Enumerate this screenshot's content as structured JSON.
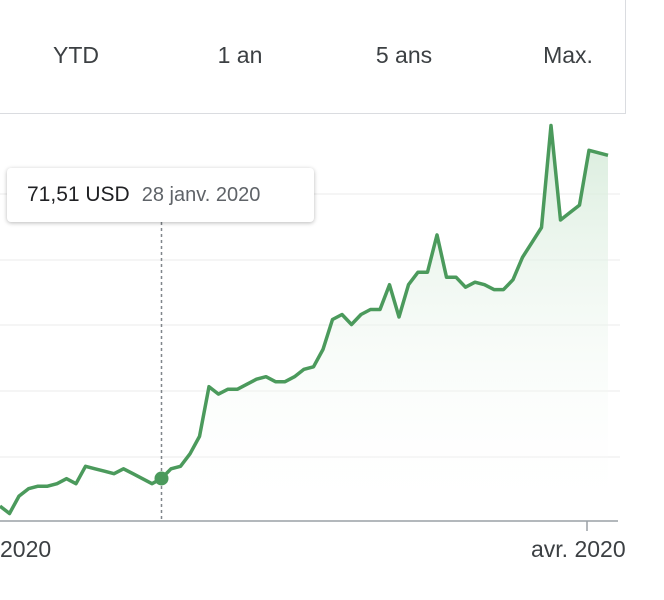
{
  "range_tabs": [
    "YTD",
    "1 an",
    "5 ans",
    "Max."
  ],
  "tooltip": {
    "price": "71,51 USD",
    "date": "28 janv. 2020"
  },
  "x_axis_labels": [
    "2020",
    "avr. 2020"
  ],
  "colors": {
    "line": "#4b9a5c",
    "fill_top": "#d4ead8",
    "grid": "#ebebeb",
    "axis": "#9aa0a6",
    "text": "#3c4043"
  },
  "chart_data": {
    "type": "area",
    "currency": "USD",
    "y_unit": "USD",
    "grid": true,
    "highlighted_point": {
      "date": "28 janv. 2020",
      "value": 71.51
    },
    "x": [
      "2020-01-02",
      "2020-01-03",
      "2020-01-06",
      "2020-01-07",
      "2020-01-08",
      "2020-01-09",
      "2020-01-10",
      "2020-01-13",
      "2020-01-14",
      "2020-01-15",
      "2020-01-16",
      "2020-01-17",
      "2020-01-21",
      "2020-01-22",
      "2020-01-23",
      "2020-01-24",
      "2020-01-27",
      "2020-01-28",
      "2020-01-29",
      "2020-01-30",
      "2020-01-31",
      "2020-02-03",
      "2020-02-04",
      "2020-02-05",
      "2020-02-06",
      "2020-02-07",
      "2020-02-10",
      "2020-02-11",
      "2020-02-12",
      "2020-02-13",
      "2020-02-14",
      "2020-02-18",
      "2020-02-19",
      "2020-02-20",
      "2020-02-21",
      "2020-02-24",
      "2020-02-25",
      "2020-02-26",
      "2020-02-27",
      "2020-02-28",
      "2020-03-02",
      "2020-03-03",
      "2020-03-04",
      "2020-03-05",
      "2020-03-06",
      "2020-03-09",
      "2020-03-10",
      "2020-03-11",
      "2020-03-12",
      "2020-03-13",
      "2020-03-16",
      "2020-03-17",
      "2020-03-18",
      "2020-03-19",
      "2020-03-20",
      "2020-03-23",
      "2020-03-24",
      "2020-03-25",
      "2020-03-26",
      "2020-03-27",
      "2020-03-30",
      "2020-03-31",
      "2020-04-01",
      "2020-04-02",
      "2020-04-03"
    ],
    "y": [
      70.4,
      70.1,
      70.8,
      71.1,
      71.2,
      71.2,
      71.3,
      71.5,
      71.3,
      72.0,
      71.9,
      71.8,
      71.7,
      71.9,
      71.7,
      71.5,
      71.3,
      71.51,
      71.9,
      72.0,
      72.5,
      73.2,
      75.2,
      74.9,
      75.1,
      75.1,
      75.3,
      75.5,
      75.6,
      75.4,
      75.4,
      75.6,
      75.9,
      76.0,
      76.7,
      77.9,
      78.1,
      77.7,
      78.1,
      78.3,
      78.3,
      79.3,
      78.0,
      79.3,
      79.8,
      79.8,
      81.3,
      79.6,
      79.6,
      79.2,
      79.4,
      79.3,
      79.1,
      79.1,
      79.5,
      80.4,
      81.0,
      81.6,
      85.7,
      81.9,
      82.2,
      82.5,
      84.7,
      84.6,
      84.5
    ],
    "y_range": [
      69.8,
      86.0
    ]
  }
}
